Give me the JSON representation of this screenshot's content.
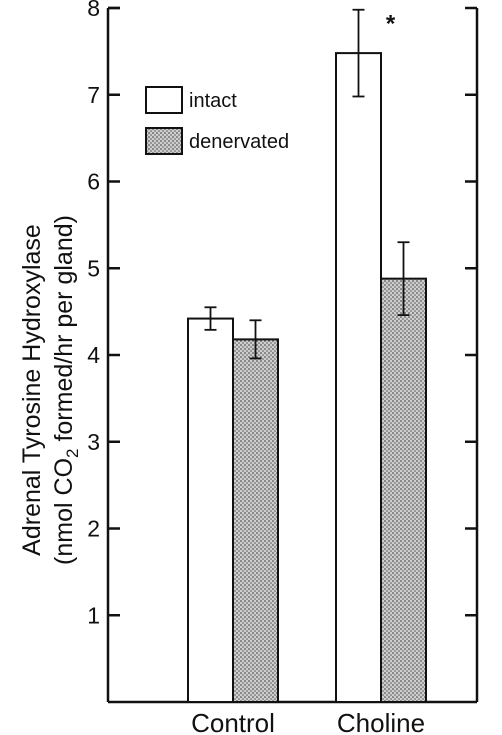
{
  "chart_data": {
    "type": "bar",
    "title": "",
    "ylabel_line1": "Adrenal Tyrosine Hydroxylase",
    "ylabel_line2_prefix": "(nmol CO",
    "ylabel_line2_sub": "2",
    "ylabel_line2_suffix": " formed/hr per gland)",
    "xlabel": "",
    "categories": [
      "Control",
      "Choline"
    ],
    "series": [
      {
        "name": "intact",
        "values": [
          4.42,
          7.48
        ],
        "errors": [
          0.13,
          0.5
        ],
        "pattern": "open"
      },
      {
        "name": "denervated",
        "values": [
          4.18,
          4.88
        ],
        "errors": [
          0.22,
          0.42
        ],
        "pattern": "stippled"
      }
    ],
    "ylim": [
      0,
      8
    ],
    "yticks": [
      1,
      2,
      3,
      4,
      5,
      6,
      7,
      8
    ],
    "annotations": [
      {
        "text": "*",
        "category": "Choline",
        "series": "intact"
      }
    ],
    "legend_position": "top-left",
    "grid": false
  }
}
